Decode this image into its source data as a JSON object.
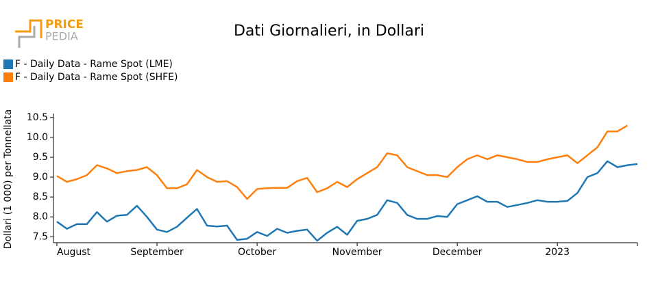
{
  "logo": {
    "line1": "PRICE",
    "line2": "PEDIA"
  },
  "chart_data": {
    "type": "line",
    "title": "Dati Giornalieri, in Dollari",
    "y_label": "Dollari (1 000) per Tonnellata",
    "categories": [
      "August",
      null,
      null,
      null,
      null,
      null,
      null,
      null,
      null,
      null,
      "September",
      null,
      null,
      null,
      null,
      null,
      null,
      null,
      null,
      null,
      "October",
      null,
      null,
      null,
      null,
      null,
      null,
      null,
      null,
      null,
      "November",
      null,
      null,
      null,
      null,
      null,
      null,
      null,
      null,
      null,
      "December",
      null,
      null,
      null,
      null,
      null,
      null,
      null,
      null,
      null,
      "2023",
      null,
      null,
      null,
      null,
      null,
      null,
      null,
      null
    ],
    "series": [
      {
        "name": "F - Daily Data - Rame Spot (LME)",
        "color": "#1f77b4",
        "values": [
          7.88,
          7.7,
          7.82,
          7.82,
          8.12,
          7.88,
          8.03,
          8.05,
          8.28,
          8.0,
          7.68,
          7.62,
          7.75,
          7.98,
          8.2,
          7.78,
          7.76,
          7.78,
          7.42,
          7.45,
          7.62,
          7.52,
          7.7,
          7.6,
          7.65,
          7.68,
          7.4,
          7.6,
          7.75,
          7.55,
          7.9,
          7.95,
          8.05,
          8.42,
          8.35,
          8.05,
          7.95,
          7.95,
          8.02,
          8.0,
          8.32,
          8.42,
          8.52,
          8.38,
          8.38,
          8.25,
          8.3,
          8.35,
          8.42,
          8.38,
          8.38,
          8.4,
          8.6,
          9.0,
          9.1,
          9.4,
          9.25,
          9.3,
          9.33
        ]
      },
      {
        "name": "F - Daily Data - Rame Spot (SHFE)",
        "color": "#ff7f0e",
        "values": [
          9.03,
          8.88,
          8.95,
          9.05,
          9.3,
          9.22,
          9.1,
          9.15,
          9.18,
          9.25,
          9.05,
          8.72,
          8.72,
          8.82,
          9.18,
          9.0,
          8.88,
          8.9,
          8.75,
          8.45,
          8.7,
          8.72,
          8.73,
          8.73,
          8.9,
          8.98,
          8.62,
          8.72,
          8.88,
          8.75,
          8.95,
          9.1,
          9.25,
          9.6,
          9.55,
          9.25,
          9.15,
          9.05,
          9.05,
          9.0,
          9.25,
          9.45,
          9.55,
          9.45,
          9.55,
          9.5,
          9.45,
          9.38,
          9.38,
          9.45,
          9.5,
          9.55,
          9.35,
          9.55,
          9.75,
          10.15,
          10.15,
          10.3,
          null
        ]
      }
    ],
    "ylim": [
      7.35,
      10.6
    ],
    "yticks": [
      7.5,
      {
        "value": 8,
        "label": "8.0"
      },
      8.5,
      {
        "value": 9,
        "label": "9.0"
      },
      9.5,
      {
        "value": 10,
        "label": "10.0"
      },
      10.5
    ],
    "grid": false
  }
}
